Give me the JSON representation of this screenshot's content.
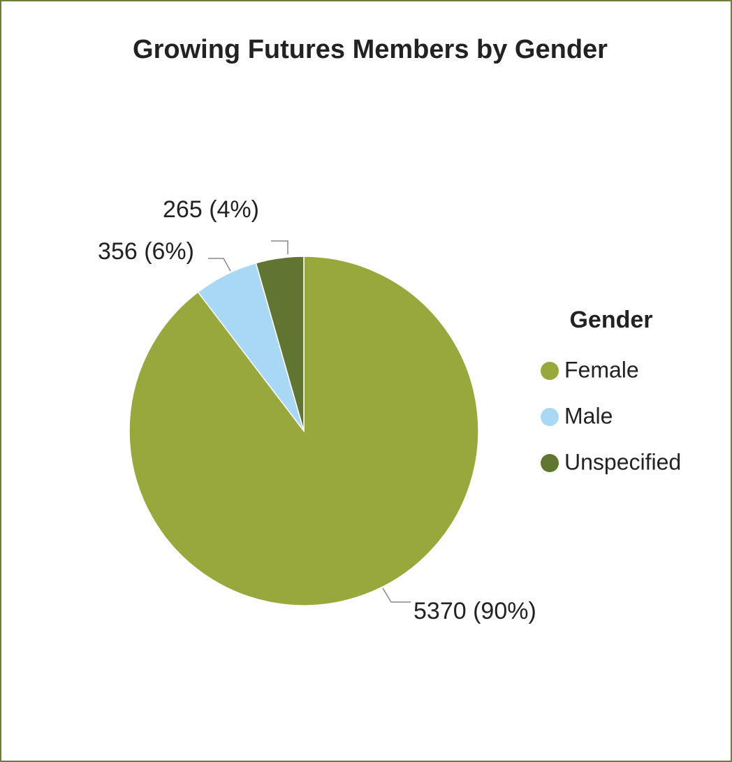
{
  "chart_data": {
    "type": "pie",
    "title": "Growing Futures Members by Gender",
    "categories": [
      "Female",
      "Male",
      "Unspecified"
    ],
    "values": [
      5370,
      356,
      265
    ],
    "value_labels": [
      "5370 (90%)",
      "356 (6%)",
      "265 (4%)"
    ],
    "colors": [
      "#98a83c",
      "#a9d8f5",
      "#607532"
    ],
    "legend_title": "Gender",
    "legend": "right"
  }
}
